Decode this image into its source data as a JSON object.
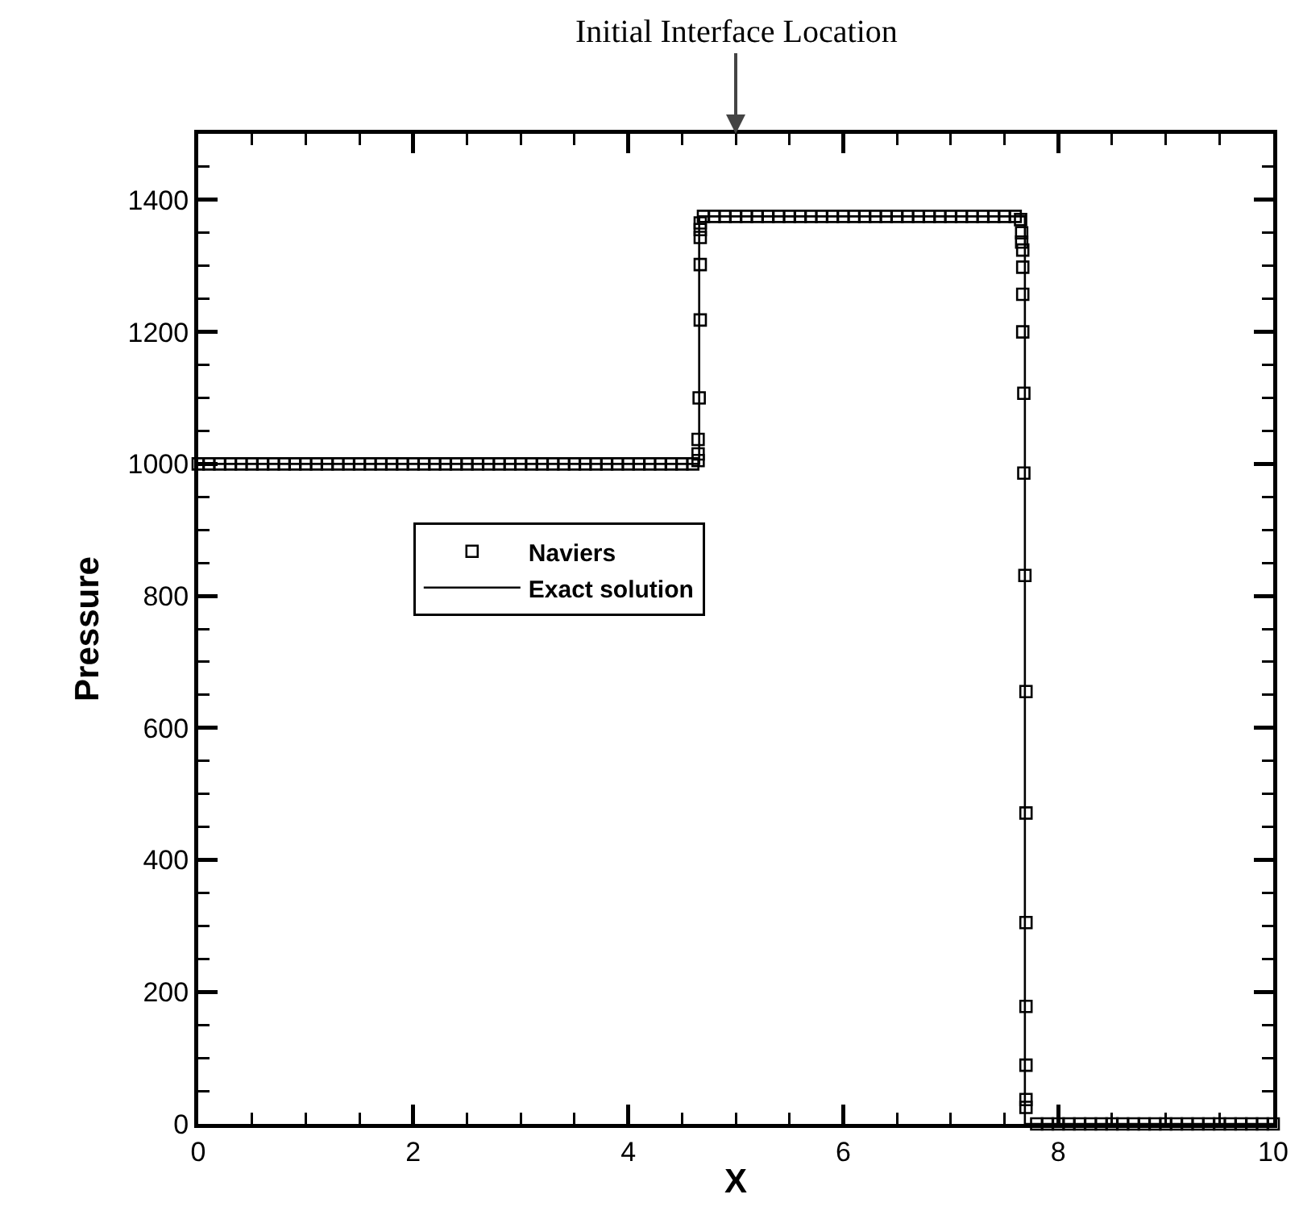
{
  "chart_data": {
    "type": "scatter",
    "xlabel": "X",
    "ylabel": "Pressure",
    "annotations": [
      "Initial Interface Location"
    ],
    "xlim": [
      0,
      10
    ],
    "xticks": [
      0,
      2,
      4,
      6,
      8,
      10
    ],
    "ylim": [
      0,
      1500
    ],
    "yticks": [
      0,
      200,
      400,
      600,
      800,
      1000,
      1200,
      1400
    ],
    "grid": false,
    "legend": "left",
    "series": [
      {
        "name": "Naviers",
        "type": "scatter",
        "marker": "square",
        "color": "#000000",
        "x": [
          0,
          0.1,
          0.2,
          0.3,
          0.4,
          0.5,
          0.6,
          0.7,
          0.8,
          0.9,
          1,
          1.1,
          1.2,
          1.3,
          1.4,
          1.5,
          1.6,
          1.7,
          1.8,
          1.9,
          2,
          2.1,
          2.2,
          2.3,
          2.4,
          2.5,
          2.6,
          2.7,
          2.8,
          2.9,
          3,
          3.1,
          3.2,
          3.3,
          3.4,
          3.5,
          3.6,
          3.7,
          3.8,
          3.9,
          4,
          4.1,
          4.2,
          4.3,
          4.4,
          4.5,
          4.6,
          4.65,
          4.65,
          4.65,
          4.66,
          4.67,
          4.67,
          4.67,
          4.67,
          4.67,
          4.7,
          4.8,
          4.9,
          5,
          5.1,
          5.2,
          5.3,
          5.4,
          5.5,
          5.6,
          5.7,
          5.8,
          5.9,
          6,
          6.1,
          6.2,
          6.3,
          6.4,
          6.5,
          6.6,
          6.7,
          6.8,
          6.9,
          7,
          7.1,
          7.2,
          7.3,
          7.4,
          7.5,
          7.6,
          7.65,
          7.66,
          7.66,
          7.67,
          7.67,
          7.67,
          7.67,
          7.68,
          7.68,
          7.69,
          7.7,
          7.7,
          7.7,
          7.7,
          7.7,
          7.7,
          7.7,
          7.8,
          7.9,
          8,
          8.1,
          8.2,
          8.3,
          8.4,
          8.5,
          8.6,
          8.7,
          8.8,
          8.9,
          9,
          9.1,
          9.2,
          9.3,
          9.4,
          9.5,
          9.6,
          9.7,
          9.8,
          9.9,
          10
        ],
        "values": [
          1000,
          1000,
          1000,
          1000,
          1000,
          1000,
          1000,
          1000,
          1000,
          1000,
          1000,
          1000,
          1000,
          1000,
          1000,
          1000,
          1000,
          1000,
          1000,
          1000,
          1000,
          1000,
          1000,
          1000,
          1000,
          1000,
          1000,
          1000,
          1000,
          1000,
          1000,
          1000,
          1000,
          1000,
          1000,
          1000,
          1000,
          1000,
          1000,
          1000,
          1000,
          1000,
          1000,
          1000,
          1000,
          1000,
          1000,
          1005,
          1015,
          1037,
          1100,
          1218,
          1302,
          1343,
          1355,
          1365,
          1375,
          1375,
          1375,
          1375,
          1375,
          1375,
          1375,
          1375,
          1375,
          1375,
          1375,
          1375,
          1375,
          1375,
          1375,
          1375,
          1375,
          1375,
          1375,
          1375,
          1375,
          1375,
          1375,
          1375,
          1375,
          1375,
          1375,
          1375,
          1375,
          1375,
          1370,
          1350,
          1336,
          1324,
          1298,
          1257,
          1200,
          1107,
          986,
          831,
          655,
          471,
          305,
          178,
          89,
          37,
          25,
          0,
          0,
          0,
          0,
          0,
          0,
          0,
          0,
          0,
          0,
          0,
          0,
          0,
          0,
          0,
          0,
          0,
          0,
          0,
          0,
          0,
          0,
          0
        ]
      },
      {
        "name": "Exact solution",
        "type": "line",
        "marker": "none",
        "line_style": "solid",
        "color": "#000000",
        "x": [
          0,
          4.66,
          4.66,
          7.69,
          7.69,
          10
        ],
        "values": [
          1000,
          1000,
          1375,
          1375,
          0,
          0
        ]
      }
    ]
  }
}
